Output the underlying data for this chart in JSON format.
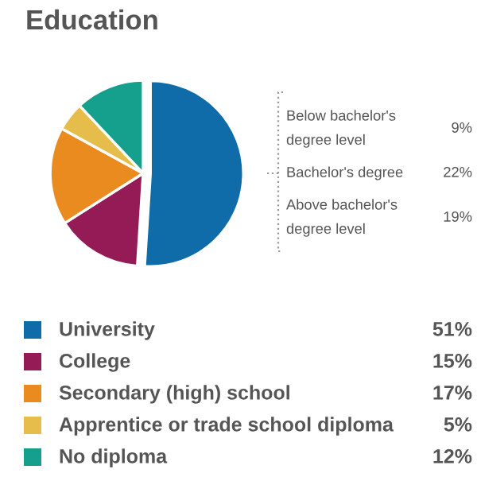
{
  "chart_data": {
    "type": "pie",
    "title": "Education",
    "categories": [
      "University",
      "College",
      "Secondary (high) school",
      "Apprentice or trade school diploma",
      "No diploma"
    ],
    "values": [
      51,
      15,
      17,
      5,
      12
    ],
    "colors": [
      "#0f6ca8",
      "#951b57",
      "#e98b1f",
      "#e6bd4a",
      "#14a08d"
    ],
    "value_labels": [
      "51%",
      "15%",
      "17%",
      "5%",
      "12%"
    ],
    "legend": "bottom",
    "annotations": [
      "Below bachelor's\ndegree level",
      "9%",
      "Bachelor's degree",
      "22%",
      "Above bachelor's\ndegree level",
      "19%"
    ]
  }
}
